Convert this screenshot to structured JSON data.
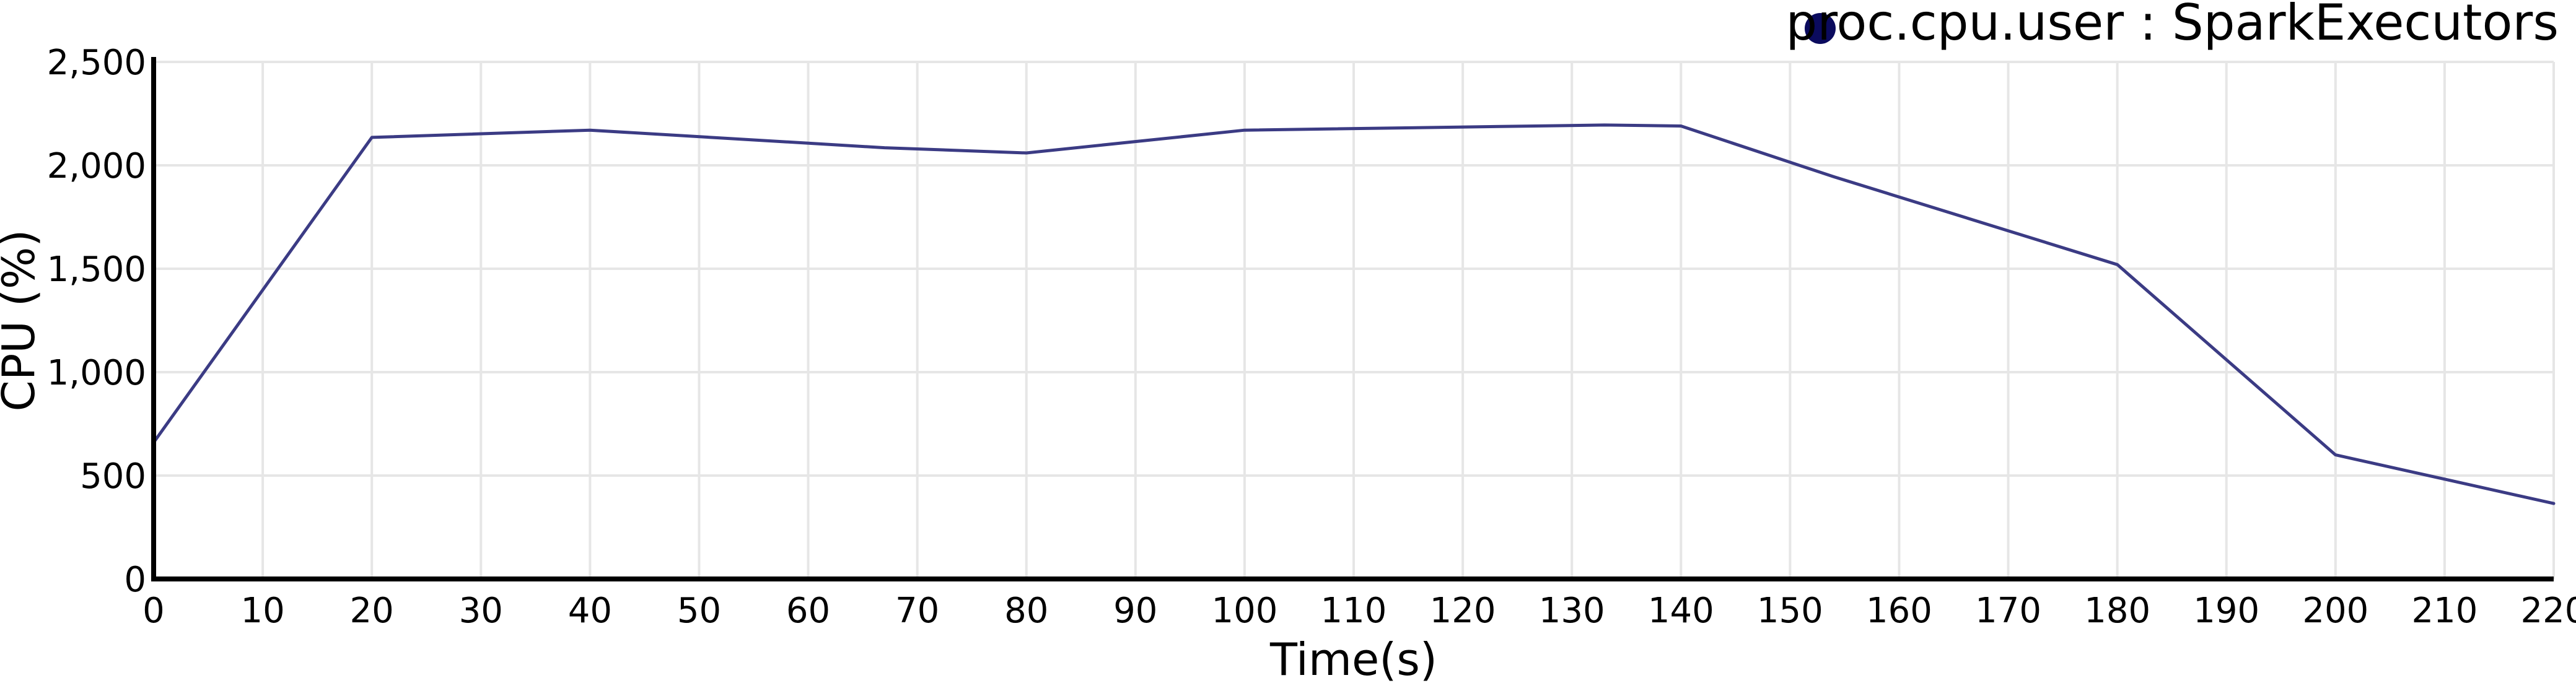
{
  "chart_data": {
    "type": "line",
    "title": "",
    "xlabel": "Time(s)",
    "ylabel": "CPU (%)",
    "xlim": [
      0,
      220
    ],
    "ylim": [
      0,
      2500
    ],
    "x_ticks": [
      0,
      10,
      20,
      30,
      40,
      50,
      60,
      70,
      80,
      90,
      100,
      110,
      120,
      130,
      140,
      150,
      160,
      170,
      180,
      190,
      200,
      210,
      220
    ],
    "y_ticks": [
      0,
      500,
      1000,
      1500,
      2000,
      2500
    ],
    "y_tick_labels": [
      "0",
      "500",
      "1,000",
      "1,500",
      "2,000",
      "2,500"
    ],
    "grid": true,
    "legend_position": "top-right",
    "series": [
      {
        "name": "proc.cpu.user : SparkExecutors",
        "color": "#3b3b84",
        "marker_color": "#0b0b5e",
        "x": [
          0,
          20,
          40,
          67,
          80,
          100,
          133,
          140,
          154,
          180,
          200,
          220
        ],
        "y": [
          660,
          2135,
          2170,
          2085,
          2060,
          2170,
          2195,
          2190,
          1945,
          1520,
          600,
          365
        ]
      }
    ]
  }
}
